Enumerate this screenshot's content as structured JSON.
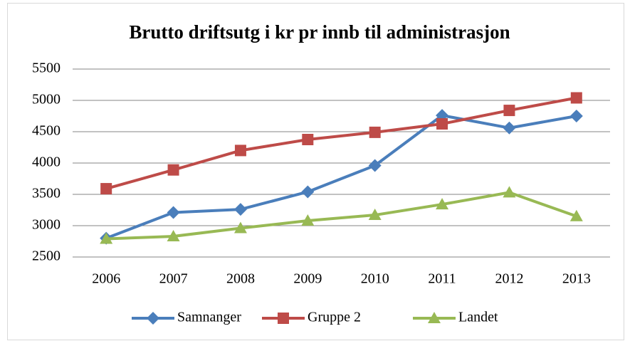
{
  "chart_data": {
    "type": "line",
    "title": "Brutto driftsutg i kr pr innb til administrasjon",
    "categories": [
      "2006",
      "2007",
      "2008",
      "2009",
      "2010",
      "2011",
      "2012",
      "2013"
    ],
    "series": [
      {
        "name": "Samnanger",
        "color": "#4a7ebb",
        "marker": "diamond",
        "values": [
          2800,
          3210,
          3260,
          3540,
          3960,
          4760,
          4560,
          4750
        ]
      },
      {
        "name": "Gruppe 2",
        "color": "#be4b48",
        "marker": "square",
        "values": [
          3590,
          3890,
          4200,
          4375,
          4490,
          4625,
          4840,
          5040
        ]
      },
      {
        "name": "Landet",
        "color": "#98b954",
        "marker": "triangle",
        "values": [
          2790,
          2830,
          2960,
          3080,
          3170,
          3340,
          3530,
          3150
        ]
      }
    ],
    "ylim": [
      2500,
      5500
    ],
    "yticks": [
      2500,
      3000,
      3500,
      4000,
      4500,
      5000,
      5500
    ],
    "grid": true,
    "legend": "bottom"
  }
}
